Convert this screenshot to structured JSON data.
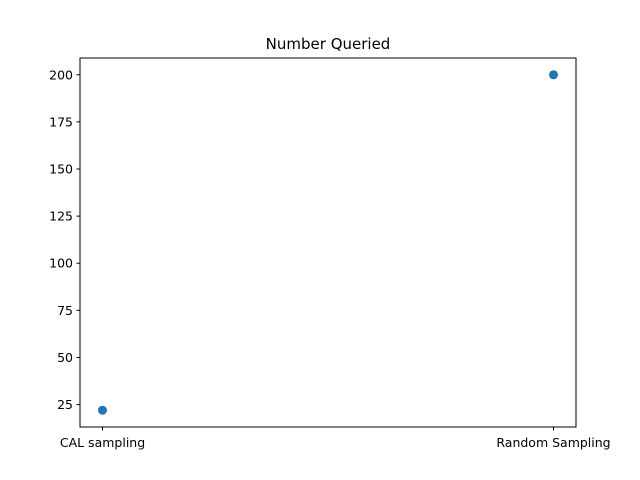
{
  "chart_data": {
    "type": "scatter",
    "title": "Number Queried",
    "xlabel": "",
    "ylabel": "",
    "categories": [
      "CAL sampling",
      "Random Sampling"
    ],
    "values": [
      22,
      200
    ],
    "ylim": [
      13.1,
      208.9
    ],
    "yticks": [
      25,
      50,
      75,
      100,
      125,
      150,
      175,
      200
    ],
    "marker_color": "#1f77b4",
    "grid": false,
    "legend": "none"
  }
}
